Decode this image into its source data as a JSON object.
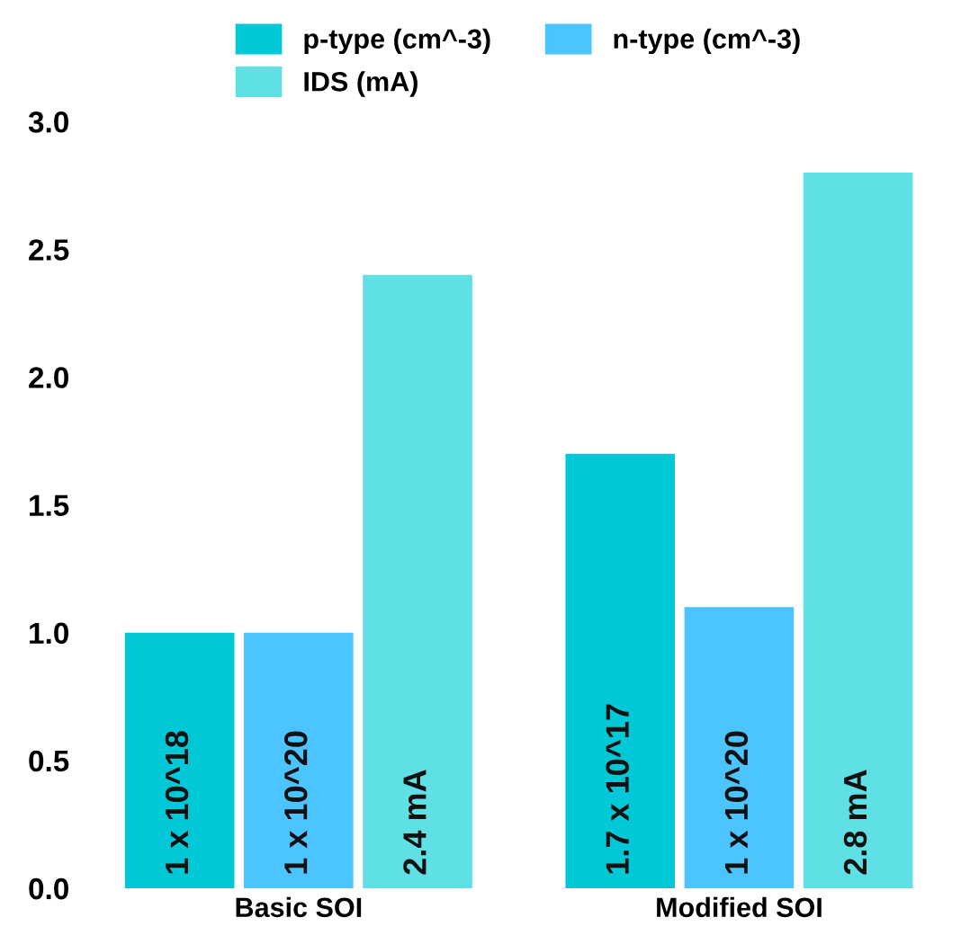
{
  "chart_data": {
    "type": "bar",
    "categories": [
      "Basic SOI",
      "Modified SOI"
    ],
    "series": [
      {
        "name": "p-type (cm^-3)",
        "color": "#00c8d6",
        "values": [
          1.0,
          1.7
        ]
      },
      {
        "name": "n-type (cm^-3)",
        "color": "#4cc4ff",
        "values": [
          1.0,
          1.1
        ]
      },
      {
        "name": "IDS (mA)",
        "color": "#5fe0e4",
        "values": [
          2.4,
          2.8
        ]
      }
    ],
    "annotations": [
      "1 x 10^18",
      "1.7 x 10^17",
      "1 x 10^20",
      "1 x 10^20",
      "2.4 mA",
      "2.8 mA"
    ],
    "ylim": [
      0,
      3.0
    ],
    "yticks": [
      {
        "value": 0,
        "label": "0.0"
      },
      {
        "value": 0.5,
        "label": "0.5"
      },
      {
        "value": 1.0,
        "label": "1.0"
      },
      {
        "value": 1.5,
        "label": "1.5"
      },
      {
        "value": 2.0,
        "label": "2.0"
      },
      {
        "value": 2.5,
        "label": "2.5"
      },
      {
        "value": 3.0,
        "label": "3.0"
      }
    ],
    "grid": false,
    "legend": "top"
  }
}
